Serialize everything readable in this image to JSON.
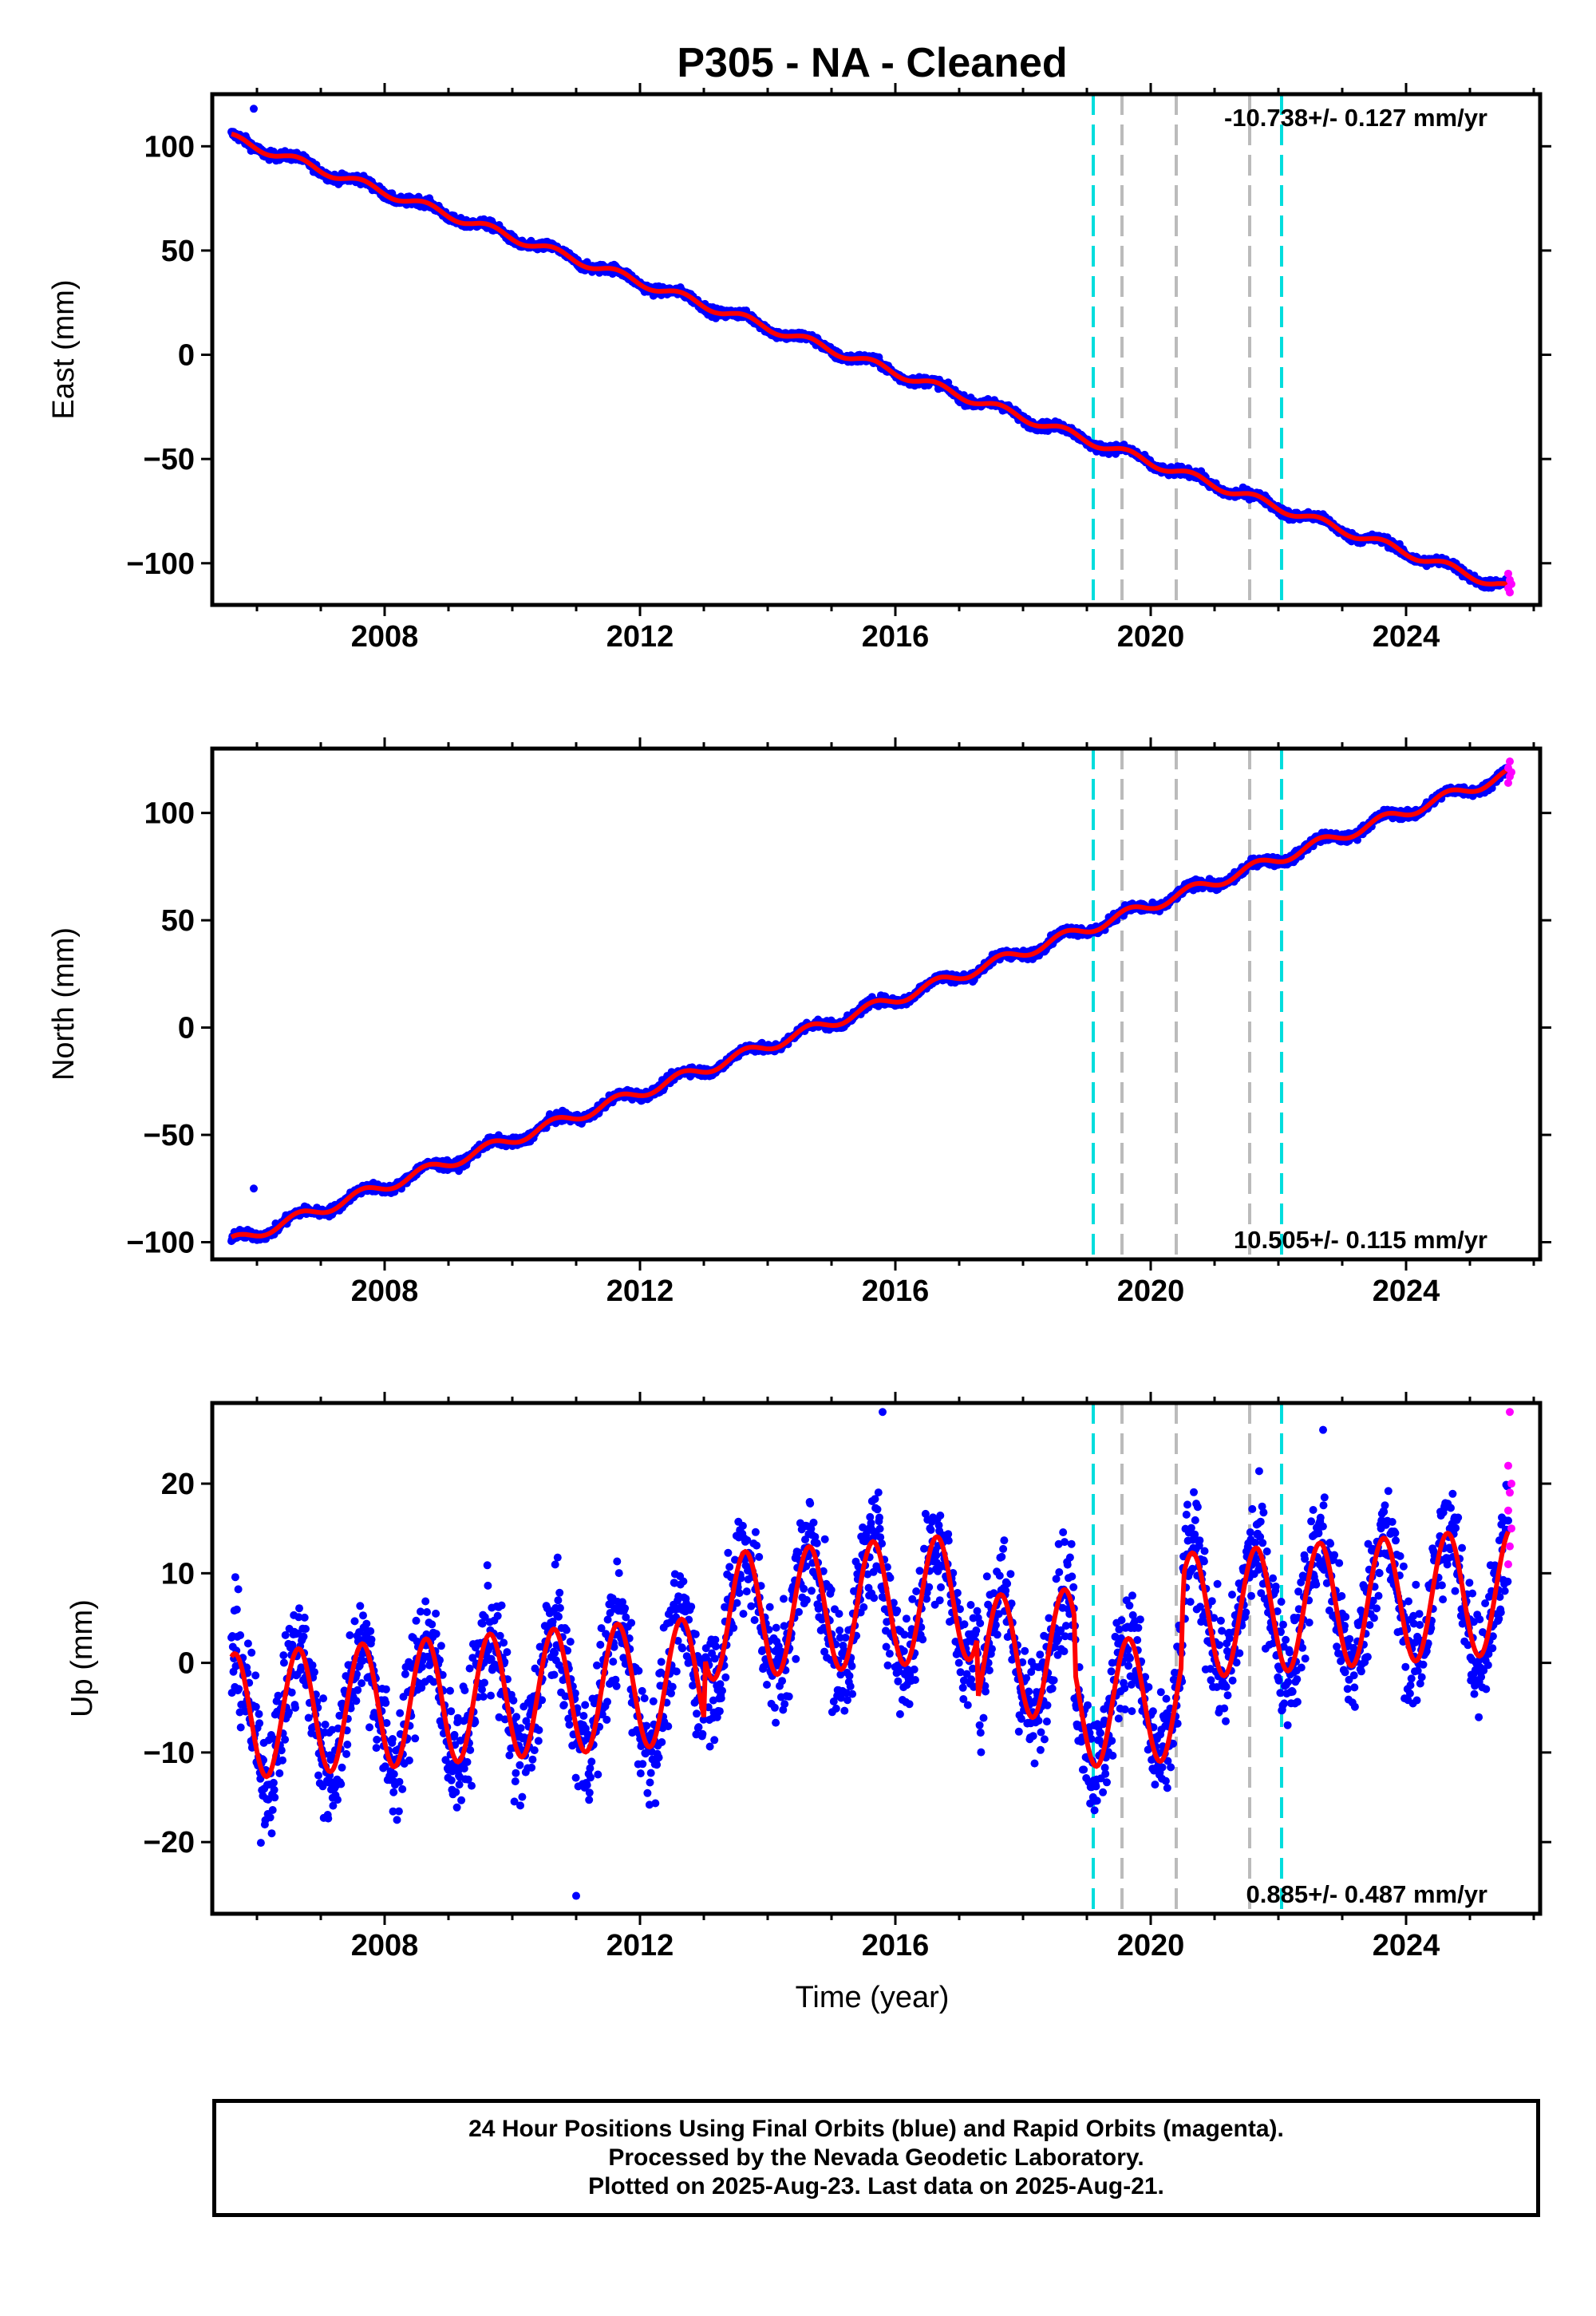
{
  "chart_data": {
    "title": "P305  - NA - Cleaned",
    "xlabel": "Time (year)",
    "xlim": [
      2005.3,
      2026.1
    ],
    "xticks": [
      2008,
      2012,
      2016,
      2020,
      2024
    ],
    "xtick_labels": [
      "2008",
      "2012",
      "2016",
      "2020",
      "2024"
    ],
    "minor_xtick_step": 1,
    "vlines": [
      {
        "x": 2019.1,
        "color": "#00dddd",
        "style": "dashed"
      },
      {
        "x": 2019.55,
        "color": "#bbbbbb",
        "style": "dashed"
      },
      {
        "x": 2020.4,
        "color": "#bbbbbb",
        "style": "dashed"
      },
      {
        "x": 2021.55,
        "color": "#bbbbbb",
        "style": "dashed"
      },
      {
        "x": 2022.05,
        "color": "#00dddd",
        "style": "dashed"
      }
    ],
    "colors": {
      "final": "#0000ff",
      "rapid": "#ff00ff",
      "model": "#ff0000"
    },
    "panels": [
      {
        "type": "scatter",
        "ylabel": "East (mm)",
        "ylim": [
          -120,
          125
        ],
        "yticks": [
          -100,
          -50,
          0,
          50,
          100
        ],
        "ytick_labels": [
          "−100",
          "−50",
          "0",
          "50",
          "100"
        ],
        "rate_label": "-10.738+/- 0.127 mm/yr",
        "rate_position": "top-right",
        "series": [
          {
            "name": "Final Orbits (blue)",
            "x_range": [
              2005.6,
              2025.6
            ],
            "start": 104,
            "end": -112,
            "seasonal_amp": 2,
            "scatter": 1.5
          },
          {
            "name": "Rapid Orbits (magenta)",
            "x_range": [
              2025.6,
              2025.65
            ],
            "values": [
              -105,
              -108,
              -110,
              -112,
              -114
            ]
          }
        ],
        "outliers": [
          {
            "x": 2005.95,
            "y": 118
          }
        ]
      },
      {
        "type": "scatter",
        "ylabel": "North (mm)",
        "ylim": [
          -108,
          130
        ],
        "yticks": [
          -100,
          -50,
          0,
          50,
          100
        ],
        "ytick_labels": [
          "−100",
          "−50",
          "0",
          "50",
          "100"
        ],
        "rate_label": "10.505+/- 0.115 mm/yr",
        "rate_position": "bottom-right",
        "series": [
          {
            "name": "Final Orbits (blue)",
            "x_range": [
              2005.6,
              2025.6
            ],
            "start": -100,
            "end": 118,
            "seasonal_amp": 2.5,
            "scatter": 1.5
          },
          {
            "name": "Rapid Orbits (magenta)",
            "x_range": [
              2025.6,
              2025.65
            ],
            "values": [
              114,
              117,
              119,
              121,
              124
            ]
          }
        ],
        "outliers": [
          {
            "x": 2005.95,
            "y": -75
          }
        ]
      },
      {
        "type": "scatter",
        "ylabel": "Up (mm)",
        "ylim": [
          -28,
          29
        ],
        "yticks": [
          -20,
          -10,
          0,
          10,
          20
        ],
        "ytick_labels": [
          "−20",
          "−10",
          "0",
          "10",
          "20"
        ],
        "rate_label": "0.885+/- 0.487 mm/yr",
        "rate_position": "bottom-right",
        "series": [
          {
            "name": "Final Orbits (blue)",
            "x_range": [
              2005.6,
              2025.6
            ],
            "start": -6,
            "end": 5,
            "seasonal_amp": 7,
            "scatter": 4.5
          },
          {
            "name": "Rapid Orbits (magenta)",
            "x_range": [
              2025.6,
              2025.65
            ],
            "values": [
              11,
              13,
              15,
              17,
              19,
              20,
              22,
              28
            ]
          }
        ],
        "outliers": [
          {
            "x": 2015.8,
            "y": 28
          },
          {
            "x": 2022.7,
            "y": 26
          },
          {
            "x": 2011.0,
            "y": -26
          }
        ]
      }
    ]
  },
  "footer": {
    "line1": "24 Hour Positions Using Final Orbits (blue) and Rapid Orbits (magenta).",
    "line2": "Processed by the Nevada Geodetic Laboratory.",
    "line3": "Plotted on 2025-Aug-23. Last data on 2025-Aug-21."
  }
}
